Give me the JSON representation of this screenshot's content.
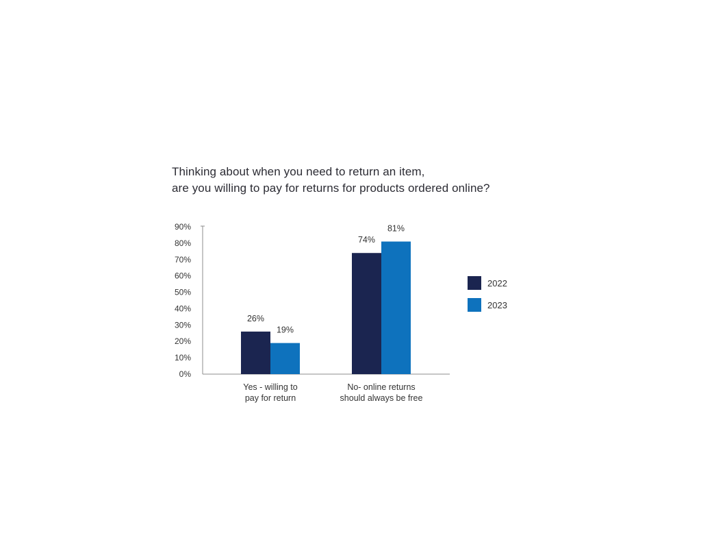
{
  "chart_data": {
    "type": "bar",
    "title_lines": [
      "Thinking about when you need to return an item,",
      "are you willing to pay for returns for products ordered online?"
    ],
    "categories": [
      [
        "Yes - willing to",
        "pay for return"
      ],
      [
        "No- online returns",
        "should always be free"
      ]
    ],
    "series": [
      {
        "name": "2022",
        "values": [
          26,
          74
        ],
        "labels": [
          "26%",
          "74%"
        ],
        "color": "#1b2550"
      },
      {
        "name": "2023",
        "values": [
          19,
          81
        ],
        "labels": [
          "19%",
          "81%"
        ],
        "color": "#0e72bd"
      }
    ],
    "y_ticks": [
      {
        "value": 0,
        "label": "0%"
      },
      {
        "value": 10,
        "label": "10%"
      },
      {
        "value": 20,
        "label": "20%"
      },
      {
        "value": 30,
        "label": "30%"
      },
      {
        "value": 40,
        "label": "40%"
      },
      {
        "value": 50,
        "label": "50%"
      },
      {
        "value": 60,
        "label": "60%"
      },
      {
        "value": 70,
        "label": "70%"
      },
      {
        "value": 80,
        "label": "80%"
      },
      {
        "value": 90,
        "label": "90%"
      }
    ],
    "ylim": [
      0,
      90
    ],
    "grid": false,
    "legend_position": "right"
  }
}
